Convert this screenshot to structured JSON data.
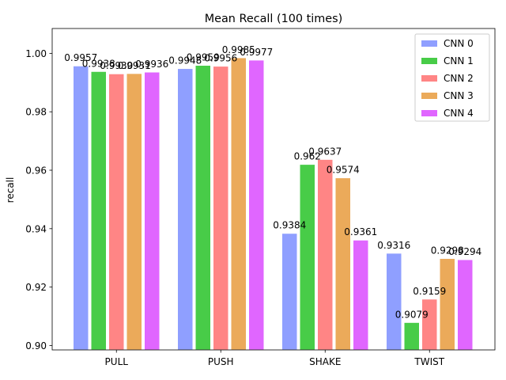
{
  "chart_data": {
    "type": "bar",
    "title": "Mean Recall (100 times)",
    "xlabel": "",
    "ylabel": "recall",
    "categories": [
      "PULL",
      "PUSH",
      "SHAKE",
      "TWIST"
    ],
    "ylim": [
      0.8985,
      1.0085
    ],
    "yticks": [
      "0.90",
      "0.92",
      "0.94",
      "0.96",
      "0.98",
      "1.00"
    ],
    "grid": false,
    "legend_position": "top-right",
    "series": [
      {
        "name": "CNN 0",
        "color": "#8f9fff",
        "values": [
          0.9957,
          0.9948,
          0.9384,
          0.9316
        ],
        "labels": [
          "0.9957",
          "0.9948",
          "0.9384",
          "0.9316"
        ]
      },
      {
        "name": "CNN 1",
        "color": "#48cc48",
        "values": [
          0.9938,
          0.9959,
          0.962,
          0.9079
        ],
        "labels": [
          "0.9938",
          "0.9959",
          "0.962",
          "0.9079"
        ]
      },
      {
        "name": "CNN 2",
        "color": "#ff8585",
        "values": [
          0.993,
          0.9956,
          0.9637,
          0.9159
        ],
        "labels": [
          "0.9930",
          "0.9956",
          "0.9637",
          "0.9159"
        ]
      },
      {
        "name": "CNN 3",
        "color": "#ebaa5a",
        "values": [
          0.9931,
          0.9985,
          0.9574,
          0.9298
        ],
        "labels": [
          "0.9931",
          "0.9985",
          "0.9574",
          "0.9298"
        ]
      },
      {
        "name": "CNN 4",
        "color": "#e066ff",
        "values": [
          0.9936,
          0.9977,
          0.9361,
          0.9294
        ],
        "labels": [
          "0.9936",
          "0.9977",
          "0.9361",
          "0.9294"
        ]
      }
    ]
  }
}
